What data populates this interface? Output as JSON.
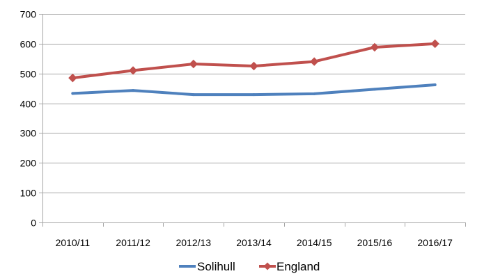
{
  "chart_data": {
    "type": "line",
    "title": "",
    "xlabel": "",
    "ylabel": "",
    "categories": [
      "2010/11",
      "2011/12",
      "2012/13",
      "2013/14",
      "2014/15",
      "2015/16",
      "2016/17"
    ],
    "ylim": [
      0,
      700
    ],
    "yticks": [
      0,
      100,
      200,
      300,
      400,
      500,
      600,
      700
    ],
    "grid": true,
    "legend_position": "bottom",
    "series": [
      {
        "name": "Solihull",
        "color": "#4F81BD",
        "marker": "none",
        "values": [
          433,
          443,
          429,
          429,
          432,
          447,
          462
        ]
      },
      {
        "name": "England",
        "color": "#C0504D",
        "marker": "diamond",
        "values": [
          485,
          510,
          532,
          525,
          540,
          588,
          600
        ]
      }
    ]
  }
}
